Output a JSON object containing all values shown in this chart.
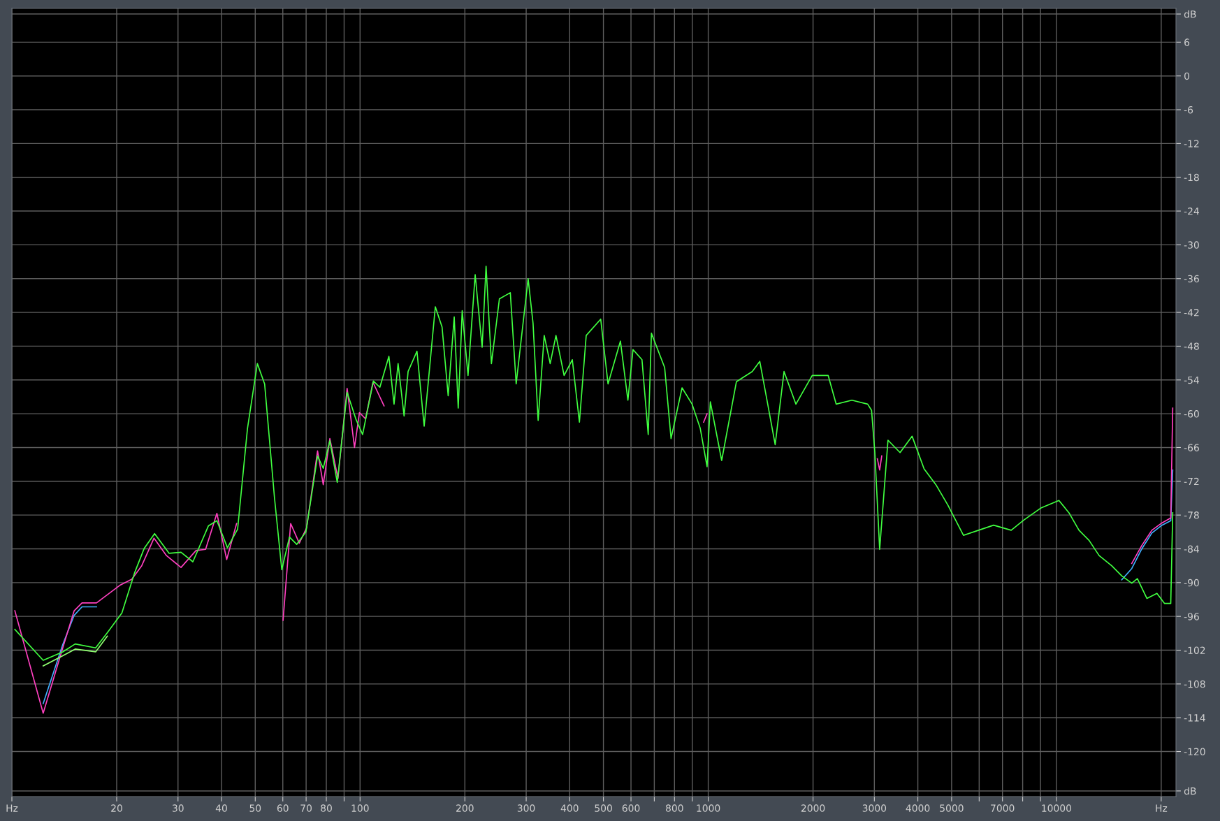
{
  "chart_data": {
    "type": "line",
    "log": "x",
    "grid": true,
    "line_style": "solid",
    "marker": "none",
    "xlim": [
      10,
      22050
    ],
    "ylim": [
      -128,
      12
    ],
    "xticks": [
      {
        "value": 10,
        "label": "Hz"
      },
      20,
      30,
      40,
      50,
      60,
      70,
      80,
      {
        "value": 90,
        "label": null
      },
      100,
      200,
      300,
      400,
      500,
      600,
      {
        "value": 700,
        "label": null
      },
      800,
      {
        "value": 900,
        "label": null
      },
      1000,
      2000,
      3000,
      4000,
      5000,
      {
        "value": 6000,
        "label": null
      },
      7000,
      {
        "value": 8000,
        "label": null
      },
      {
        "value": 9000,
        "label": null
      },
      10000,
      {
        "value": 20000,
        "label": "Hz"
      }
    ],
    "yticks": [
      {
        "value": 11,
        "label": "dB"
      },
      6,
      0,
      -6,
      -12,
      -18,
      -24,
      -30,
      -36,
      -42,
      -48,
      -54,
      -60,
      -66,
      -72,
      -78,
      -84,
      -90,
      -96,
      -102,
      -108,
      -114,
      -120,
      {
        "value": -127,
        "label": "dB"
      }
    ],
    "series": [
      {
        "color": "#40b0ff",
        "x": [
          12.3,
          14.0,
          15.1,
          15.9,
          17.5,
          100,
          15402,
          16460,
          17590,
          18800,
          20090,
          21300,
          21580
        ],
        "values": [
          -111.5,
          -101.0,
          -95.8,
          -94.3,
          -94.3,
          null,
          -89.5,
          -87.5,
          -84.0,
          -81.2,
          -79.8,
          -79.0,
          -70.0
        ]
      },
      {
        "color": "#ff40c0",
        "x": [
          10.2,
          12.3,
          14.0,
          15.1,
          15.9,
          17.5,
          20.4,
          22.1,
          23.6,
          25.6,
          27.8,
          30.6,
          33.8,
          36.0,
          38.8,
          41.4,
          44.2,
          47.5,
          60.1,
          63.2,
          66.9,
          70.2,
          75.5,
          78.4,
          81.9,
          86.4,
          91.8,
          96.4,
          99.6,
          103.7,
          108.9,
          117.2,
          121,
          970,
          992.3,
          1014,
          3060,
          3107,
          3150,
          15402,
          16460,
          17590,
          18800,
          20090,
          21300,
          21580
        ],
        "values": [
          -95.0,
          -113.2,
          -101.6,
          -95.0,
          -93.6,
          -93.6,
          -90.5,
          -89.4,
          -87.0,
          -82.1,
          -85.2,
          -87.3,
          -84.3,
          -84.1,
          -77.7,
          -85.9,
          -79.5,
          null,
          -96.7,
          -79.5,
          -83.0,
          -80.3,
          -66.6,
          -72.6,
          -64.4,
          -71.5,
          -55.5,
          -66.0,
          -59.8,
          -60.9,
          -54.4,
          -58.6,
          null,
          -61.5,
          -60.0,
          null,
          -68.0,
          -70.0,
          -67.5,
          null,
          -86.6,
          -83.4,
          -80.7,
          -79.4,
          -78.5,
          -59.0
        ]
      },
      {
        "color": "#90ff70",
        "x": [
          12.3,
          14.0,
          15.2,
          17.4,
          18.8
        ],
        "values": [
          -104.8,
          -103.0,
          -101.8,
          -102.3,
          -99.5
        ]
      },
      {
        "color": "#40ff40",
        "x": [
          10.2,
          12.3,
          14.0,
          15.2,
          17.4,
          18.8,
          20.7,
          22.5,
          24.0,
          25.7,
          28.3,
          30.6,
          33.1,
          36.7,
          38.8,
          41.6,
          44.5,
          47.5,
          50.7,
          53.2,
          56.8,
          59.6,
          62.7,
          65.8,
          69.9,
          75.5,
          78.4,
          81.9,
          86.0,
          91.8,
          97.2,
          101.7,
          109.2,
          114,
          121,
          125.2,
          128.6,
          133.8,
          137.4,
          145.7,
          152.8,
          164.5,
          172.0,
          179.1,
          186.4,
          191.4,
          196.5,
          204.2,
          214.1,
          224.2,
          230.1,
          238.4,
          251.3,
          270.1,
          280.8,
          303.9,
          313.9,
          324.7,
          338.0,
          351.6,
          365.3,
          385.5,
          407.0,
          426.6,
          446.2,
          491.1,
          515.5,
          559.5,
          587.9,
          608.0,
          645.2,
          672.4,
          686.8,
          749.6,
          782.0,
          841.0,
          898.7,
          948.6,
          992.3,
          1014,
          1093,
          1205,
          1338,
          1406,
          1482,
          1557,
          1651,
          1786,
          1989,
          2210,
          2331,
          2586,
          2870,
          2945,
          3010,
          3107,
          3283,
          3556,
          3851,
          4168,
          4507,
          4875,
          5408,
          5976,
          6601,
          7415,
          8057,
          9052,
          10167,
          10866,
          11612,
          12410,
          13265,
          14411,
          15402,
          16460,
          17080,
          18190,
          19440,
          20450,
          21300,
          21580
        ],
        "values": [
          -98.3,
          -103.8,
          -102.3,
          -100.9,
          -101.6,
          -98.9,
          -95.4,
          -88.3,
          -83.9,
          -81.3,
          -84.8,
          -84.6,
          -86.3,
          -79.9,
          -79.0,
          -83.8,
          -80.5,
          -62.6,
          -51.1,
          -54.7,
          -75.0,
          -87.7,
          -81.9,
          -83.2,
          -81.0,
          -67.5,
          -69.7,
          -64.8,
          -72.2,
          -56.2,
          -60.9,
          -63.7,
          -54.2,
          -55.3,
          -49.8,
          -58.3,
          -51.1,
          -60.4,
          -52.5,
          -48.9,
          -62.2,
          -41.0,
          -44.6,
          -56.8,
          -42.8,
          -59.0,
          -41.7,
          -53.2,
          -35.3,
          -48.2,
          -33.8,
          -51.1,
          -39.6,
          -38.5,
          -54.7,
          -36.0,
          -43.9,
          -61.2,
          -46.1,
          -51.1,
          -46.1,
          -53.2,
          -50.4,
          -61.5,
          -46.1,
          -43.2,
          -54.7,
          -47.1,
          -57.6,
          -48.6,
          -50.4,
          -63.7,
          -45.7,
          -51.8,
          -64.4,
          -55.4,
          -58.3,
          -62.6,
          -69.4,
          -57.9,
          -68.3,
          -54.3,
          -52.5,
          -50.7,
          -58.3,
          -65.5,
          -52.5,
          -58.3,
          -53.2,
          -53.2,
          -58.3,
          -57.6,
          -58.3,
          -59.4,
          -66.9,
          -84.1,
          -64.7,
          -66.9,
          -64.0,
          -69.8,
          -72.6,
          -76.2,
          -81.6,
          -80.7,
          -79.8,
          -80.7,
          -78.9,
          -76.7,
          -75.4,
          -77.6,
          -80.7,
          -82.5,
          -85.2,
          -87.0,
          -88.8,
          -90.1,
          -89.3,
          -92.8,
          -91.9,
          -93.7,
          -93.7,
          -77.6
        ]
      }
    ]
  }
}
